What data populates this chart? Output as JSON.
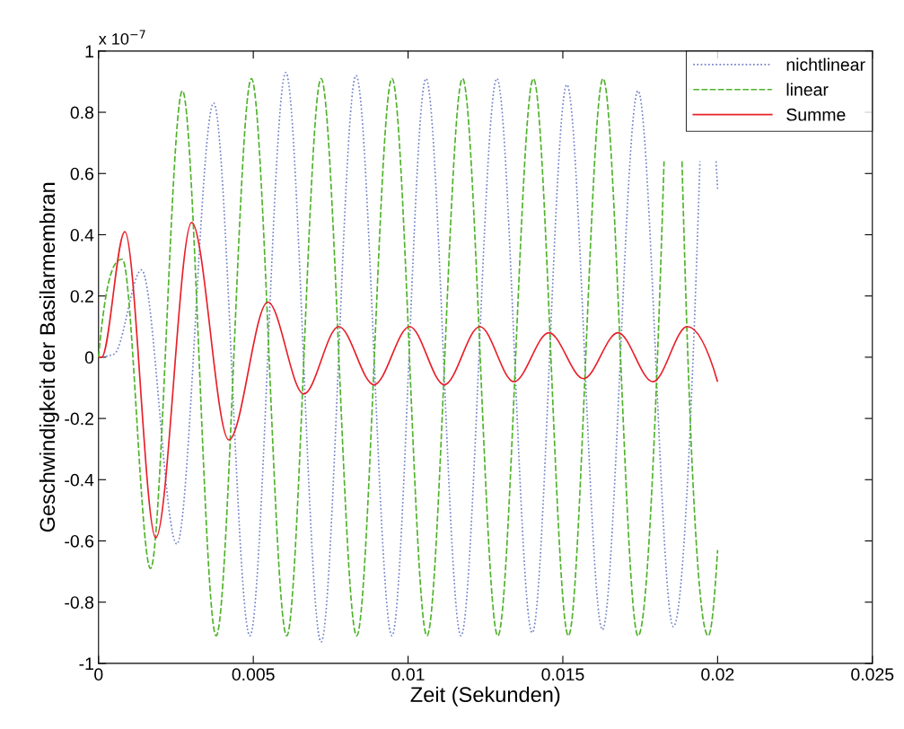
{
  "chart_data": {
    "type": "line",
    "xlabel": "Zeit (Sekunden)",
    "ylabel": "Geschwindigkeit der Basilarmembran",
    "annotations": [
      "x 10$^{−7}$"
    ],
    "xlim": [
      0,
      0.025
    ],
    "xticks": [
      0,
      0.005,
      0.01,
      0.015,
      0.02,
      0.025
    ],
    "ylim": [
      -1,
      1
    ],
    "yticks": [
      -1,
      -0.8,
      -0.6,
      -0.4,
      -0.2,
      0,
      0.2,
      0.4,
      0.6,
      0.8,
      1
    ],
    "grid": false,
    "legend": "top right",
    "series": [
      {
        "name": "nichtlinear",
        "color": "#6f7fc8",
        "line_style": "dotted",
        "x": [
          0,
          0.0005,
          0.00139,
          0.00253,
          0.00372,
          0.00489,
          0.00605,
          0.00719,
          0.00832,
          0.00948,
          0.01058,
          0.01171,
          0.01287,
          0.01401,
          0.01513,
          0.01628,
          0.01743,
          0.01857,
          0.01943,
          0.0197,
          0.01995,
          0.02
        ],
        "values": [
          0,
          0.01,
          0.285,
          -0.61,
          0.83,
          -0.91,
          0.93,
          -0.93,
          0.92,
          -0.91,
          0.91,
          -0.91,
          0.91,
          -0.9,
          0.89,
          -0.89,
          0.87,
          -0.88,
          0.64,
          null,
          0.64,
          0.55
        ]
      },
      {
        "name": "linear",
        "color": "#4fb32a",
        "line_style": "dashed",
        "x": [
          0,
          0.00077,
          0.00168,
          0.00271,
          0.0038,
          0.00494,
          0.00608,
          0.00719,
          0.00834,
          0.00948,
          0.01061,
          0.01176,
          0.0129,
          0.01405,
          0.01518,
          0.0163,
          0.01743,
          0.01827,
          0.01855,
          0.01885,
          0.0197,
          0.02
        ],
        "values": [
          0,
          0.32,
          -0.69,
          0.87,
          -0.91,
          0.91,
          -0.91,
          0.91,
          -0.91,
          0.91,
          -0.91,
          0.91,
          -0.91,
          0.91,
          -0.91,
          0.91,
          -0.91,
          0.64,
          null,
          0.64,
          -0.91,
          -0.63
        ]
      },
      {
        "name": "Summe",
        "color": "#e8202a",
        "line_style": "solid",
        "x": [
          0,
          0.0001,
          0.00085,
          0.00185,
          0.00301,
          0.00421,
          0.00547,
          0.00663,
          0.00776,
          0.0089,
          0.01005,
          0.01117,
          0.01232,
          0.01342,
          0.01455,
          0.01567,
          0.01678,
          0.01791,
          0.01902,
          0.02
        ],
        "values": [
          0,
          0,
          0.41,
          -0.59,
          0.44,
          -0.27,
          0.18,
          -0.12,
          0.1,
          -0.09,
          0.1,
          -0.09,
          0.1,
          -0.08,
          0.08,
          -0.07,
          0.08,
          -0.08,
          0.1,
          -0.08
        ]
      }
    ]
  }
}
